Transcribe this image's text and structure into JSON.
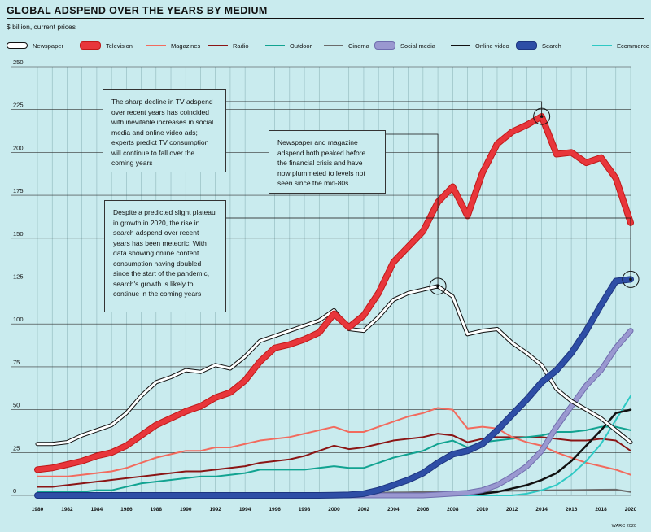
{
  "title": "GLOBAL ADSPEND OVER THE YEARS BY MEDIUM",
  "subtitle": "$ billion, current prices",
  "source": "WARC 2020",
  "annotations": [
    "The sharp decline in TV adspend over recent years has coincided with inevitable increases in social media and online video ads; experts predict TV consumption will continue to fall over the coming years",
    "Newspaper and magazine adspend both peaked before the financial crisis and have now plummeted to levels not seen since the mid-80s",
    "Despite a predicted slight plateau in growth in 2020, the rise in search adspend over recent years has been meteoric. With data showing online content consumption having doubled since the start of the pandemic, search's growth is likely to continue in the coming years"
  ],
  "chart_data": {
    "type": "line",
    "title": "GLOBAL ADSPEND OVER THE YEARS BY MEDIUM",
    "ylabel": "$ billion, current prices",
    "ylim": [
      0,
      250
    ],
    "yticks": [
      0,
      25,
      50,
      75,
      100,
      125,
      150,
      175,
      200,
      225,
      250
    ],
    "xlim": [
      1980,
      2020
    ],
    "xticks": [
      1980,
      1982,
      1984,
      1986,
      1988,
      1990,
      1992,
      1994,
      1996,
      1998,
      2000,
      2002,
      2004,
      2006,
      2008,
      2010,
      2012,
      2014,
      2016,
      2018,
      2020
    ],
    "grid": true,
    "legend_position": "top",
    "x": [
      1980,
      1981,
      1982,
      1983,
      1984,
      1985,
      1986,
      1987,
      1988,
      1989,
      1990,
      1991,
      1992,
      1993,
      1994,
      1995,
      1996,
      1997,
      1998,
      1999,
      2000,
      2001,
      2002,
      2003,
      2004,
      2005,
      2006,
      2007,
      2008,
      2009,
      2010,
      2011,
      2012,
      2013,
      2014,
      2015,
      2016,
      2017,
      2018,
      2019,
      2020
    ],
    "series": [
      {
        "name": "Newspaper",
        "color": "#ffffff",
        "values": [
          30,
          30,
          31,
          35,
          38,
          41,
          48,
          58,
          66,
          69,
          73,
          72,
          76,
          74,
          81,
          90,
          93,
          96,
          99,
          102,
          108,
          97,
          96,
          104,
          114,
          118,
          120,
          122,
          116,
          94,
          96,
          97,
          89,
          83,
          76,
          62,
          55,
          50,
          45,
          38,
          31
        ]
      },
      {
        "name": "Television",
        "color": "#e8363b",
        "values": [
          15,
          16,
          18,
          20,
          23,
          25,
          29,
          35,
          41,
          45,
          49,
          52,
          57,
          60,
          67,
          78,
          86,
          88,
          91,
          95,
          106,
          98,
          105,
          118,
          136,
          145,
          154,
          171,
          180,
          163,
          188,
          205,
          212,
          216,
          221,
          199,
          200,
          194,
          197,
          185,
          159
        ]
      },
      {
        "name": "Magazines",
        "color": "#f26b5e",
        "values": [
          11,
          11,
          11,
          12,
          13,
          14,
          16,
          19,
          22,
          24,
          26,
          26,
          28,
          28,
          30,
          32,
          33,
          34,
          36,
          38,
          40,
          37,
          37,
          40,
          43,
          46,
          48,
          51,
          50,
          39,
          40,
          39,
          34,
          31,
          29,
          25,
          22,
          19,
          17,
          15,
          12
        ]
      },
      {
        "name": "Radio",
        "color": "#8b1515",
        "values": [
          5,
          5,
          6,
          7,
          8,
          9,
          10,
          11,
          12,
          13,
          14,
          14,
          15,
          16,
          17,
          19,
          20,
          21,
          23,
          26,
          29,
          27,
          28,
          30,
          32,
          33,
          34,
          36,
          35,
          31,
          33,
          34,
          34,
          34,
          34,
          33,
          32,
          32,
          33,
          32,
          26
        ]
      },
      {
        "name": "Outdoor",
        "color": "#11a391",
        "values": [
          2,
          2,
          2,
          2,
          3,
          3,
          5,
          7,
          8,
          9,
          10,
          11,
          11,
          12,
          13,
          15,
          15,
          15,
          15,
          16,
          17,
          16,
          16,
          19,
          22,
          24,
          26,
          30,
          32,
          28,
          31,
          32,
          33,
          34,
          35,
          37,
          37,
          38,
          40,
          40,
          38
        ]
      },
      {
        "name": "Cinema",
        "color": "#6b6b6b",
        "values": [
          0.5,
          0.5,
          0.5,
          0.5,
          0.6,
          0.6,
          0.6,
          0.7,
          0.7,
          0.8,
          0.8,
          0.8,
          0.9,
          0.9,
          1,
          1,
          1,
          1.1,
          1.2,
          1.3,
          1.4,
          1.4,
          1.5,
          1.6,
          1.7,
          1.8,
          2,
          2,
          2.2,
          2.1,
          2.3,
          2.5,
          2.7,
          2.8,
          2.9,
          3,
          3.1,
          3.2,
          3.3,
          3.4,
          2
        ]
      },
      {
        "name": "Social media",
        "color": "#9a98d0",
        "values": [
          0,
          0,
          0,
          0,
          0,
          0,
          0,
          0,
          0,
          0,
          0,
          0,
          0,
          0,
          0,
          0,
          0,
          0,
          0,
          0,
          0,
          0,
          0,
          0,
          0,
          0,
          0,
          0.5,
          1,
          1.5,
          3,
          6,
          11,
          17,
          26,
          40,
          52,
          64,
          73,
          86,
          96
        ]
      },
      {
        "name": "Online video",
        "color": "#111111",
        "values": [
          0,
          0,
          0,
          0,
          0,
          0,
          0,
          0,
          0,
          0,
          0,
          0,
          0,
          0,
          0,
          0,
          0,
          0,
          0,
          0,
          0,
          0,
          0,
          0,
          0,
          0,
          0,
          0,
          0.3,
          0.6,
          1,
          2,
          4,
          6,
          9,
          13,
          20,
          29,
          38,
          48,
          50
        ]
      },
      {
        "name": "Search",
        "color": "#2e4ea6",
        "values": [
          0,
          0,
          0,
          0,
          0,
          0,
          0,
          0,
          0,
          0,
          0,
          0,
          0,
          0,
          0,
          0,
          0,
          0,
          0,
          0,
          0.1,
          0.3,
          1,
          3,
          6,
          9,
          13,
          19,
          24,
          26,
          30,
          38,
          47,
          56,
          66,
          73,
          83,
          96,
          111,
          125,
          126
        ]
      },
      {
        "name": "Ecommerce",
        "color": "#2ec9c4",
        "values": [
          0,
          0,
          0,
          0,
          0,
          0,
          0,
          0,
          0,
          0,
          0,
          0,
          0,
          0,
          0,
          0,
          0,
          0,
          0,
          0,
          0,
          0,
          0,
          0,
          0,
          0,
          0,
          0,
          0,
          0,
          0,
          0,
          0,
          1,
          3,
          6,
          12,
          20,
          30,
          44,
          58
        ]
      }
    ]
  }
}
